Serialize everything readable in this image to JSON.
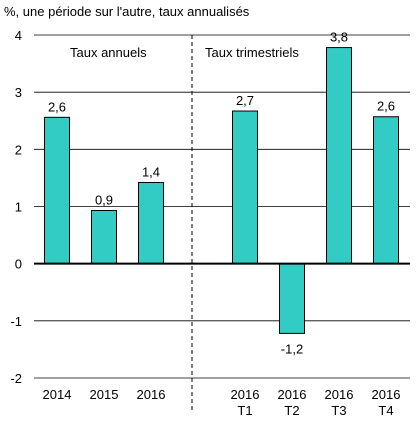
{
  "chart_data": {
    "type": "bar",
    "title": "%, une période sur l'autre, taux annualisés",
    "ylim": [
      -2,
      4
    ],
    "yticks": [
      "-2",
      "-1",
      "0",
      "1",
      "2",
      "3",
      "4"
    ],
    "grid": true,
    "bar_color": "#33CCC4",
    "groups": [
      {
        "label": "Taux annuels"
      },
      {
        "label": "Taux trimestriels"
      }
    ],
    "categories": [
      {
        "line1": "2014",
        "line2": ""
      },
      {
        "line1": "2015",
        "line2": ""
      },
      {
        "line1": "2016",
        "line2": ""
      },
      {
        "line1": "2016",
        "line2": "T1"
      },
      {
        "line1": "2016",
        "line2": "T2"
      },
      {
        "line1": "2016",
        "line2": "T3"
      },
      {
        "line1": "2016",
        "line2": "T4"
      }
    ],
    "values": [
      2.56,
      0.93,
      1.42,
      2.67,
      -1.22,
      3.78,
      2.57
    ],
    "data_labels": [
      "2,6",
      "0,9",
      "1,4",
      "2,7",
      "-1,2",
      "3,8",
      "2,6"
    ]
  }
}
